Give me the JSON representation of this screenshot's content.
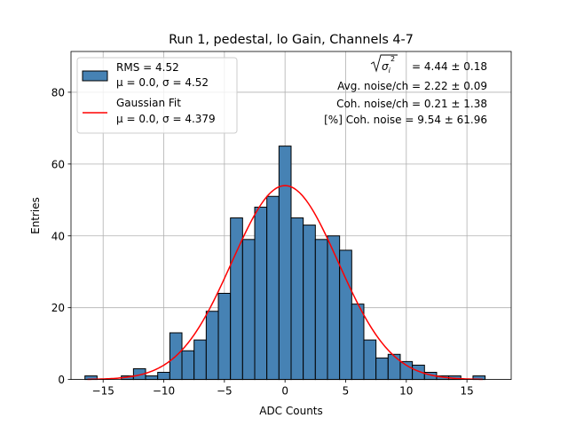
{
  "chart_data": {
    "type": "bar",
    "title": "Run 1, pedestal, lo Gain, Channels 4-7",
    "xlabel": "ADC Counts",
    "ylabel": "Entries",
    "xlim": [
      -17.65,
      18.65
    ],
    "ylim": [
      0,
      91.35
    ],
    "bin_width": 1,
    "bin_start": -16.5,
    "values": [
      1,
      0,
      0,
      1,
      3,
      1,
      2,
      13,
      8,
      11,
      19,
      24,
      45,
      39,
      48,
      51,
      65,
      45,
      43,
      39,
      40,
      36,
      21,
      11,
      6,
      7,
      5,
      4,
      2,
      1,
      1,
      0,
      1
    ],
    "x_ticks": [
      "−15",
      "−10",
      "−5",
      "0",
      "5",
      "10",
      "15"
    ],
    "x_tick_values": [
      -15,
      -10,
      -5,
      0,
      5,
      10,
      15
    ],
    "y_ticks": [
      "0",
      "20",
      "40",
      "60",
      "80"
    ],
    "y_tick_values": [
      0,
      20,
      40,
      60,
      80
    ],
    "grid": true,
    "bar_color": "#4682b4",
    "fit_color": "#ff0000",
    "fit": {
      "mu": 0.0,
      "sigma": 4.379,
      "amplitude": 54,
      "x_from": -16.3,
      "x_to": 16.3
    },
    "legend": {
      "position": "upper-left",
      "entries": [
        {
          "kind": "patch",
          "line1": "RMS = 4.52",
          "line2": "μ = 0.0, σ = 4.52"
        },
        {
          "kind": "line",
          "line1": "Gaussian Fit",
          "line2": "μ = 0.0, σ = 4.379"
        }
      ]
    },
    "annotations": {
      "sqrt_radicand": "σ",
      "sqrt_subscript": "i",
      "sqrt_superscript": "2",
      "sqrt_value": " = 4.44 ± 0.18",
      "line2": "Avg. noise/ch = 2.22 ± 0.09",
      "line3": "Coh. noise/ch = 0.21 ± 1.38",
      "line4": "[%] Coh. noise = 9.54 ± 61.96"
    }
  }
}
